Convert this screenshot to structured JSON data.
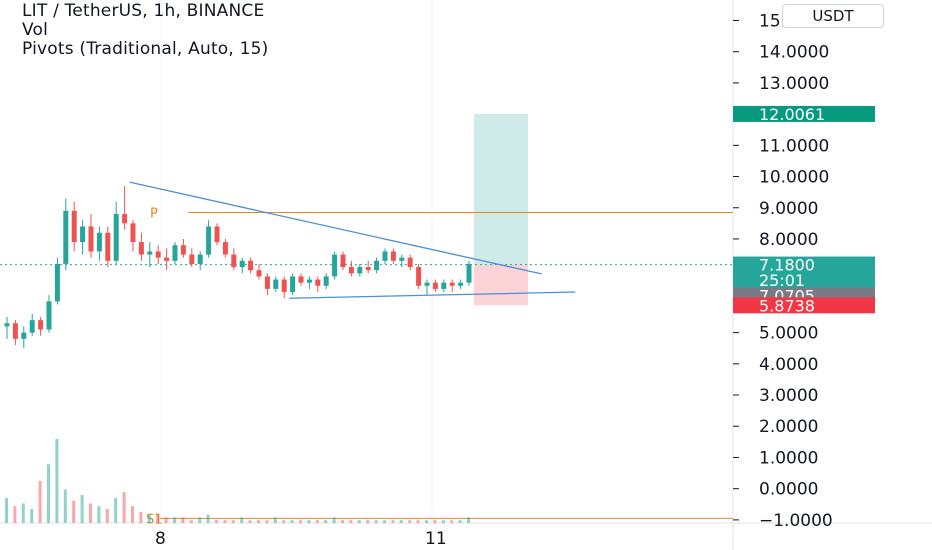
{
  "legend": {
    "symbol_line": "LIT / TetherUS, 1h, BINANCE",
    "vol_label": "Vol",
    "pivots_label": "Pivots (Traditional, Auto, 15)"
  },
  "currency_button": "USDT",
  "price_axis": {
    "labels": [
      "15.0000",
      "14.0000",
      "13.0000",
      "11.0000",
      "10.0000",
      "9.0000",
      "8.0000",
      "5.0000",
      "4.0000",
      "3.0000",
      "2.0000",
      "1.0000",
      "0.0000",
      "−1.0000"
    ],
    "values": [
      15,
      14,
      13,
      11,
      10,
      9,
      8,
      5,
      4,
      3,
      2,
      1,
      0,
      -1
    ]
  },
  "price_tags": [
    {
      "name": "target-price-tag",
      "label": "12.0061",
      "value": 12.0061,
      "color": "#089981"
    },
    {
      "name": "last-price-tag",
      "label": "7.1800",
      "value": 7.18,
      "color": "#26a69a"
    },
    {
      "name": "countdown-tag",
      "label": "25:01",
      "value": 6.68,
      "color": "#26a69a"
    },
    {
      "name": "pivot-price-tag",
      "label": "7.0705",
      "value": 6.19,
      "color": "#787b86"
    },
    {
      "name": "stop-price-tag",
      "label": "5.8738",
      "value": 5.8738,
      "color": "#f23645"
    }
  ],
  "time_axis": {
    "labels": [
      "8",
      "11"
    ]
  },
  "pivot_labels": {
    "p": "P",
    "s1": "S1"
  },
  "colors": {
    "up": "#26a69a",
    "down": "#ef5350",
    "trendline": "#2962ff",
    "pivot": "#e5891e",
    "target_zone": "rgba(38,166,154,0.22)",
    "stop_zone": "rgba(242,54,69,0.22)"
  },
  "chart_data": {
    "type": "candlestick",
    "y_range": [
      -1.1,
      15.4
    ],
    "pivot_levels": {
      "P": 8.85,
      "S1": -0.95
    },
    "last_price": 7.18,
    "trendlines": [
      {
        "name": "upper-trendline",
        "from": [
          14,
          9.82
        ],
        "to": [
          64,
          6.88
        ]
      },
      {
        "name": "lower-trendline",
        "from": [
          33,
          6.1
        ],
        "to": [
          68,
          6.3
        ]
      }
    ],
    "position": {
      "entry": 7.18,
      "target": 12.0061,
      "stop": 5.8738
    },
    "candles": [
      [
        5.2,
        5.5,
        4.8,
        5.3
      ],
      [
        5.3,
        5.4,
        4.6,
        4.8
      ],
      [
        4.8,
        5.2,
        4.5,
        5.0
      ],
      [
        5.0,
        5.6,
        4.9,
        5.4
      ],
      [
        5.4,
        5.5,
        4.9,
        5.1
      ],
      [
        5.1,
        6.2,
        5.0,
        6.0
      ],
      [
        6.0,
        7.4,
        5.9,
        7.2
      ],
      [
        7.2,
        9.3,
        7.0,
        8.9
      ],
      [
        8.9,
        9.2,
        7.6,
        7.9
      ],
      [
        7.9,
        8.6,
        7.5,
        8.4
      ],
      [
        8.4,
        8.8,
        7.4,
        7.6
      ],
      [
        7.6,
        8.4,
        7.3,
        8.2
      ],
      [
        8.2,
        8.4,
        7.1,
        7.3
      ],
      [
        7.3,
        9.2,
        7.2,
        8.8
      ],
      [
        8.8,
        9.7,
        8.3,
        8.5
      ],
      [
        8.5,
        8.6,
        7.6,
        7.9
      ],
      [
        7.9,
        8.2,
        7.3,
        7.5
      ],
      [
        7.5,
        7.9,
        7.1,
        7.6
      ],
      [
        7.6,
        7.8,
        7.2,
        7.4
      ],
      [
        7.4,
        7.7,
        7.0,
        7.3
      ],
      [
        7.3,
        7.9,
        7.2,
        7.8
      ],
      [
        7.8,
        8.0,
        7.4,
        7.5
      ],
      [
        7.5,
        7.7,
        7.1,
        7.2
      ],
      [
        7.2,
        7.6,
        7.0,
        7.5
      ],
      [
        7.5,
        8.6,
        7.4,
        8.4
      ],
      [
        8.4,
        8.5,
        7.8,
        7.9
      ],
      [
        7.9,
        8.0,
        7.4,
        7.5
      ],
      [
        7.5,
        7.7,
        7.0,
        7.1
      ],
      [
        7.1,
        7.4,
        6.9,
        7.3
      ],
      [
        7.3,
        7.4,
        6.9,
        7.0
      ],
      [
        7.0,
        7.2,
        6.7,
        6.8
      ],
      [
        6.8,
        6.9,
        6.2,
        6.4
      ],
      [
        6.4,
        6.8,
        6.3,
        6.7
      ],
      [
        6.7,
        6.8,
        6.1,
        6.3
      ],
      [
        6.3,
        6.9,
        6.2,
        6.8
      ],
      [
        6.8,
        6.9,
        6.5,
        6.6
      ],
      [
        6.6,
        6.8,
        6.4,
        6.7
      ],
      [
        6.7,
        6.8,
        6.3,
        6.5
      ],
      [
        6.5,
        6.9,
        6.4,
        6.8
      ],
      [
        6.8,
        7.6,
        6.7,
        7.5
      ],
      [
        7.5,
        7.6,
        7.0,
        7.1
      ],
      [
        7.1,
        7.3,
        6.8,
        6.9
      ],
      [
        6.9,
        7.2,
        6.8,
        7.1
      ],
      [
        7.1,
        7.3,
        6.9,
        7.0
      ],
      [
        7.0,
        7.4,
        6.9,
        7.3
      ],
      [
        7.3,
        7.7,
        7.2,
        7.6
      ],
      [
        7.6,
        7.7,
        7.2,
        7.3
      ],
      [
        7.3,
        7.5,
        7.1,
        7.4
      ],
      [
        7.4,
        7.5,
        7.0,
        7.1
      ],
      [
        7.1,
        7.2,
        6.4,
        6.5
      ],
      [
        6.5,
        6.7,
        6.2,
        6.6
      ],
      [
        6.6,
        6.7,
        6.3,
        6.4
      ],
      [
        6.4,
        6.7,
        6.3,
        6.6
      ],
      [
        6.6,
        6.7,
        6.3,
        6.5
      ],
      [
        6.5,
        6.7,
        6.4,
        6.6
      ],
      [
        6.6,
        7.3,
        6.5,
        7.2
      ]
    ],
    "volume": [
      0.9,
      0.6,
      0.7,
      0.5,
      1.5,
      2.1,
      3.0,
      1.2,
      0.8,
      1.0,
      0.7,
      0.6,
      0.5,
      0.9,
      1.1,
      0.6,
      0.4,
      0.3,
      0.3,
      0.2,
      0.2,
      0.2,
      0.1,
      0.2,
      0.3,
      0.1,
      0.1,
      0.1,
      0.2,
      0.1,
      0.1,
      0.1,
      0.2,
      0.1,
      0.1,
      0.1,
      0.1,
      0.1,
      0.1,
      0.2,
      0.1,
      0.1,
      0.1,
      0.1,
      0.1,
      0.1,
      0.1,
      0.1,
      0.1,
      0.1,
      0.1,
      0.1,
      0.1,
      0.1,
      0.1,
      0.2
    ]
  }
}
